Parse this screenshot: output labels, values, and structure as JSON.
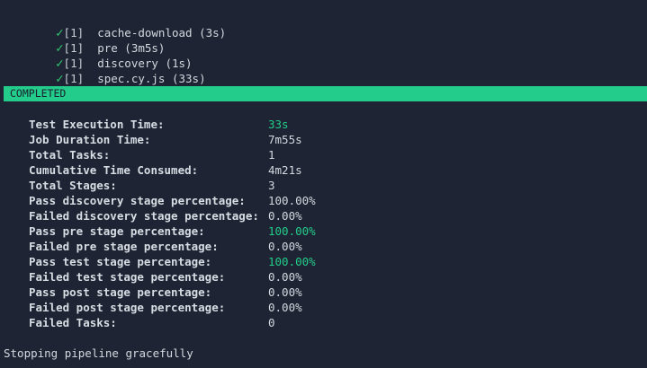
{
  "stages": [
    {
      "check": "✓",
      "tag": "[1]",
      "label": "cache-download (3s)"
    },
    {
      "check": "✓",
      "tag": "[1]",
      "label": "pre (3m5s)"
    },
    {
      "check": "✓",
      "tag": "[1]",
      "label": "discovery (1s)"
    },
    {
      "check": "✓",
      "tag": "[1]",
      "label": "spec.cy.js (33s)"
    }
  ],
  "banner": {
    "text": "COMPLETED",
    "color": "#23cc8a"
  },
  "summary": [
    {
      "label": "Test Execution Time:",
      "value": "33s",
      "highlight": true
    },
    {
      "label": "Job Duration Time:",
      "value": "7m55s",
      "highlight": false
    },
    {
      "label": "Total Tasks:",
      "value": "1",
      "highlight": false
    },
    {
      "label": "Cumulative Time Consumed:",
      "value": "4m21s",
      "highlight": false
    },
    {
      "label": "Total Stages:",
      "value": "3",
      "highlight": false
    },
    {
      "label": "Pass discovery stage percentage:",
      "value": "100.00%",
      "highlight": false
    },
    {
      "label": "Failed discovery stage percentage:",
      "value": "0.00%",
      "highlight": false
    },
    {
      "label": "Pass pre stage percentage:",
      "value": "100.00%",
      "highlight": true
    },
    {
      "label": "Failed pre stage percentage:",
      "value": "0.00%",
      "highlight": false
    },
    {
      "label": "Pass test stage percentage:",
      "value": "100.00%",
      "highlight": true
    },
    {
      "label": "Failed test stage percentage:",
      "value": "0.00%",
      "highlight": false
    },
    {
      "label": "Pass post stage percentage:",
      "value": "0.00%",
      "highlight": false
    },
    {
      "label": "Failed post stage percentage:",
      "value": "0.00%",
      "highlight": false
    },
    {
      "label": "Failed Tasks:",
      "value": "0",
      "highlight": false
    }
  ],
  "footer": "Stopping pipeline gracefully"
}
